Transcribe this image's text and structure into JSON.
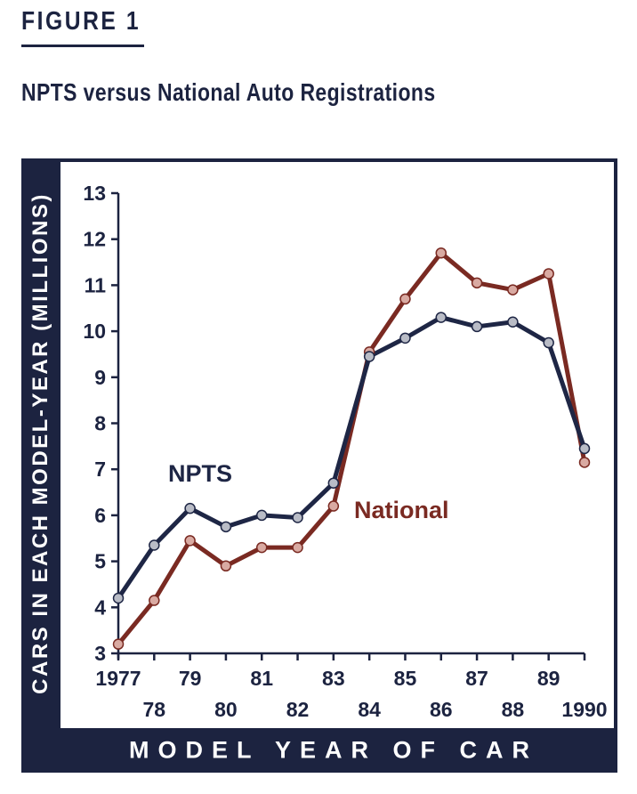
{
  "figure_label": "FIGURE 1",
  "colors": {
    "navy": "#1c2340",
    "npts": "#1e2645",
    "national": "#7a2a22",
    "npts_marker": "#b9bcc6",
    "national_marker": "#d9aaa2"
  },
  "chart_data": {
    "type": "line",
    "title": "NPTS versus National Auto Registrations",
    "xlabel": "MODEL YEAR OF CAR",
    "ylabel": "CARS IN EACH MODEL-YEAR (MILLIONS)",
    "x": [
      1977,
      1978,
      1979,
      1980,
      1981,
      1982,
      1983,
      1984,
      1985,
      1986,
      1987,
      1988,
      1989,
      1990
    ],
    "x_tick_labels": [
      "1977",
      "78",
      "79",
      "80",
      "81",
      "82",
      "83",
      "84",
      "85",
      "86",
      "87",
      "88",
      "89",
      "1990"
    ],
    "ylim": [
      3,
      13
    ],
    "y_ticks": [
      3,
      4,
      5,
      6,
      7,
      8,
      9,
      10,
      11,
      12,
      13
    ],
    "grid": false,
    "series": [
      {
        "name": "NPTS",
        "values": [
          4.2,
          5.35,
          6.15,
          5.75,
          6.0,
          5.95,
          6.7,
          9.45,
          9.85,
          10.3,
          10.1,
          10.2,
          9.75,
          7.45
        ]
      },
      {
        "name": "National",
        "values": [
          3.2,
          4.15,
          5.45,
          4.9,
          5.3,
          5.3,
          6.2,
          9.55,
          10.7,
          11.7,
          11.05,
          10.9,
          11.25,
          7.15
        ]
      }
    ]
  }
}
